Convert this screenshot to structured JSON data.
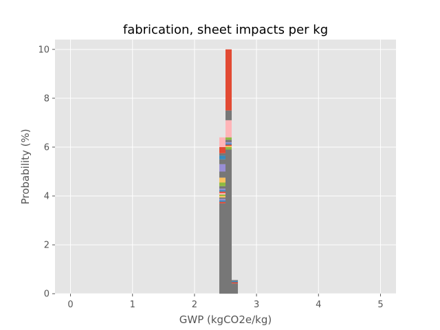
{
  "chart_data": {
    "type": "bar",
    "title": "fabrication, sheet impacts per kg",
    "xlabel": "GWP (kgCO2e/kg)",
    "ylabel": "Probability (%)",
    "xlim": [
      -0.25,
      5.25
    ],
    "ylim": [
      0,
      10.4
    ],
    "x_ticks": [
      0,
      1,
      2,
      3,
      4,
      5
    ],
    "x_tick_labels": [
      "0",
      "1",
      "2",
      "3",
      "4",
      "5"
    ],
    "y_ticks": [
      0,
      2,
      4,
      6,
      8,
      10
    ],
    "y_tick_labels": [
      "0",
      "2",
      "4",
      "6",
      "8",
      "10"
    ],
    "grid": true,
    "legend": "none",
    "colors": {
      "plot_bg": "#e5e5e5",
      "grid": "#ffffff",
      "text": "#555555",
      "title": "#000000"
    },
    "stacked_bars": [
      {
        "x_left": 2.4,
        "x_right": 2.5,
        "segments": [
          {
            "from": 0,
            "to": 3.7,
            "color": "#777777"
          },
          {
            "from": 3.7,
            "to": 3.76,
            "color": "#e24a33"
          },
          {
            "from": 3.76,
            "to": 3.82,
            "color": "#348abd"
          },
          {
            "from": 3.82,
            "to": 3.88,
            "color": "#988ed5"
          },
          {
            "from": 3.88,
            "to": 3.94,
            "color": "#777777"
          },
          {
            "from": 3.94,
            "to": 4.0,
            "color": "#fbc15e"
          },
          {
            "from": 4.0,
            "to": 4.06,
            "color": "#8eba42"
          },
          {
            "from": 4.06,
            "to": 4.12,
            "color": "#ffb5b8"
          },
          {
            "from": 4.12,
            "to": 4.18,
            "color": "#e24a33"
          },
          {
            "from": 4.18,
            "to": 4.24,
            "color": "#348abd"
          },
          {
            "from": 4.24,
            "to": 4.3,
            "color": "#988ed5"
          },
          {
            "from": 4.3,
            "to": 4.4,
            "color": "#777777"
          },
          {
            "from": 4.4,
            "to": 4.55,
            "color": "#8eba42"
          },
          {
            "from": 4.55,
            "to": 4.75,
            "color": "#fbc15e"
          },
          {
            "from": 4.75,
            "to": 5.0,
            "color": "#777777"
          },
          {
            "from": 5.0,
            "to": 5.3,
            "color": "#988ed5"
          },
          {
            "from": 5.3,
            "to": 5.5,
            "color": "#777777"
          },
          {
            "from": 5.5,
            "to": 5.65,
            "color": "#348abd"
          },
          {
            "from": 5.65,
            "to": 5.75,
            "color": "#777777"
          },
          {
            "from": 5.75,
            "to": 6.0,
            "color": "#e24a33"
          },
          {
            "from": 6.0,
            "to": 6.4,
            "color": "#ffb5b8"
          }
        ]
      },
      {
        "x_left": 2.5,
        "x_right": 2.6,
        "segments": [
          {
            "from": 0,
            "to": 5.9,
            "color": "#777777"
          },
          {
            "from": 5.9,
            "to": 6.0,
            "color": "#8eba42"
          },
          {
            "from": 6.0,
            "to": 6.05,
            "color": "#fbc15e"
          },
          {
            "from": 6.05,
            "to": 6.1,
            "color": "#e24a33"
          },
          {
            "from": 6.1,
            "to": 6.15,
            "color": "#348abd"
          },
          {
            "from": 6.15,
            "to": 6.2,
            "color": "#988ed5"
          },
          {
            "from": 6.2,
            "to": 6.3,
            "color": "#777777"
          },
          {
            "from": 6.3,
            "to": 6.4,
            "color": "#8eba42"
          },
          {
            "from": 6.4,
            "to": 7.1,
            "color": "#ffb5b8"
          },
          {
            "from": 7.1,
            "to": 7.5,
            "color": "#777777"
          },
          {
            "from": 7.5,
            "to": 10.0,
            "color": "#e24a33"
          }
        ]
      },
      {
        "x_left": 2.6,
        "x_right": 2.7,
        "segments": [
          {
            "from": 0,
            "to": 0.42,
            "color": "#777777"
          },
          {
            "from": 0.42,
            "to": 0.47,
            "color": "#e24a33"
          },
          {
            "from": 0.47,
            "to": 0.52,
            "color": "#348abd"
          },
          {
            "from": 0.52,
            "to": 0.56,
            "color": "#777777"
          }
        ]
      }
    ]
  }
}
